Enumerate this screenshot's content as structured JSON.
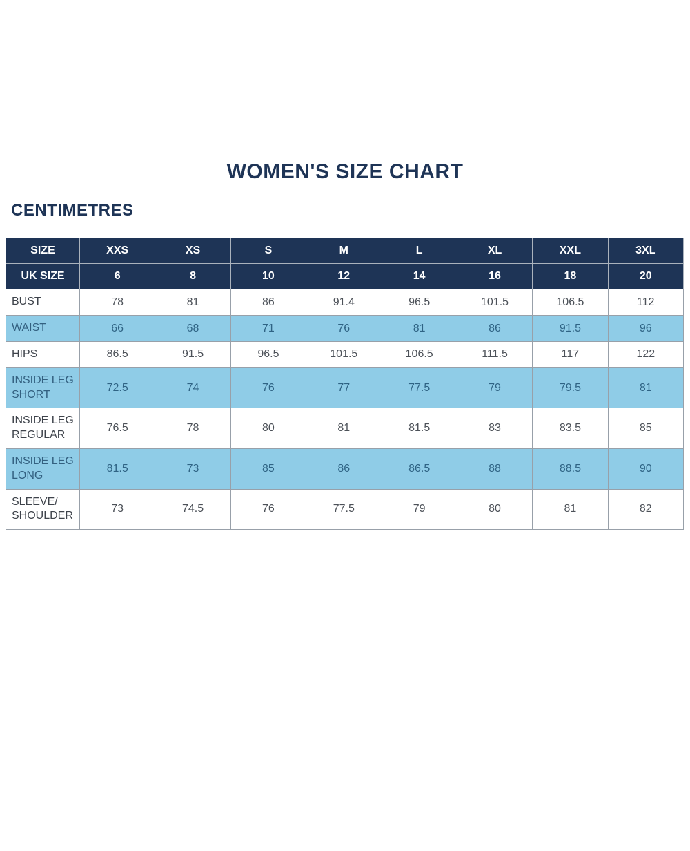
{
  "page": {
    "title": "WOMEN'S SIZE CHART",
    "unit_label": "CENTIMETRES"
  },
  "colors": {
    "navy_header": "#1e3456",
    "shaded_row_blue": "#8fcce7",
    "grid_border": "#98a0a9",
    "title_text": "#1e3456"
  },
  "table": {
    "header_rows": [
      {
        "label": "SIZE",
        "values": [
          "XXS",
          "XS",
          "S",
          "M",
          "L",
          "XL",
          "XXL",
          "3XL"
        ]
      },
      {
        "label": "UK SIZE",
        "values": [
          "6",
          "8",
          "10",
          "12",
          "14",
          "16",
          "18",
          "20"
        ]
      }
    ],
    "rows": [
      {
        "label": "BUST",
        "shaded": false,
        "values": [
          "78",
          "81",
          "86",
          "91.4",
          "96.5",
          "101.5",
          "106.5",
          "112"
        ]
      },
      {
        "label": "WAIST",
        "shaded": true,
        "values": [
          "66",
          "68",
          "71",
          "76",
          "81",
          "86",
          "91.5",
          "96"
        ]
      },
      {
        "label": "HIPS",
        "shaded": false,
        "values": [
          "86.5",
          "91.5",
          "96.5",
          "101.5",
          "106.5",
          "111.5",
          "117",
          "122"
        ]
      },
      {
        "label": "INSIDE LEG SHORT",
        "shaded": true,
        "values": [
          "72.5",
          "74",
          "76",
          "77",
          "77.5",
          "79",
          "79.5",
          "81"
        ]
      },
      {
        "label": "INSIDE LEG REGULAR",
        "shaded": false,
        "values": [
          "76.5",
          "78",
          "80",
          "81",
          "81.5",
          "83",
          "83.5",
          "85"
        ]
      },
      {
        "label": "INSIDE LEG LONG",
        "shaded": true,
        "values": [
          "81.5",
          "73",
          "85",
          "86",
          "86.5",
          "88",
          "88.5",
          "90"
        ]
      },
      {
        "label": "SLEEVE/ SHOULDER",
        "shaded": false,
        "values": [
          "73",
          "74.5",
          "76",
          "77.5",
          "79",
          "80",
          "81",
          "82"
        ]
      }
    ]
  }
}
